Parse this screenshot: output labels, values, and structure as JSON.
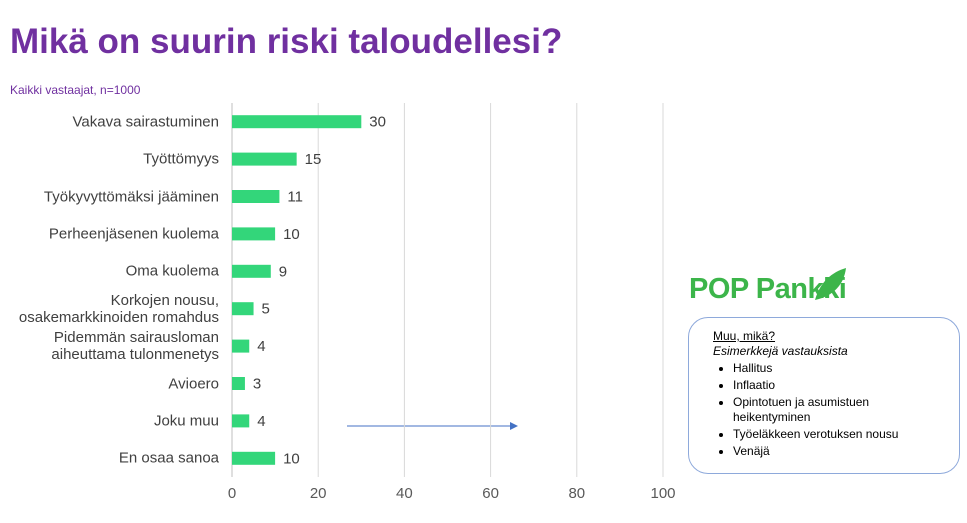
{
  "chart_data": {
    "type": "bar",
    "orientation": "horizontal",
    "title": "Mikä on suurin riski taloudellesi?",
    "subtitle": "Kaikki vastaajat, n=1000",
    "categories": [
      "Vakava sairastuminen",
      "Työttömyys",
      "Työkyvyttömäksi jääminen",
      "Perheenjäsenen kuolema",
      "Oma kuolema",
      "Korkojen nousu,\nosakemarkkinoiden romahdus",
      "Pidemmän sairausloman\naiheuttama tulonmenetys",
      "Avioero",
      "Joku muu",
      "En osaa sanoa"
    ],
    "values": [
      30,
      15,
      11,
      10,
      9,
      5,
      4,
      3,
      4,
      10
    ],
    "color": "#33d67a",
    "xlim": [
      0,
      100
    ],
    "xticks": [
      0,
      20,
      40,
      60,
      80,
      100
    ],
    "grid": true,
    "logo": "POP Pankki",
    "note": {
      "heading": "Muu, mikä?",
      "subheading": "Esimerkkejä vastauksista",
      "items": [
        "Hallitus",
        "Inflaatio",
        "Opintotuen ja asumistuen heikentyminen",
        "Työeläkkeen verotuksen nousu",
        "Venäjä"
      ]
    }
  }
}
